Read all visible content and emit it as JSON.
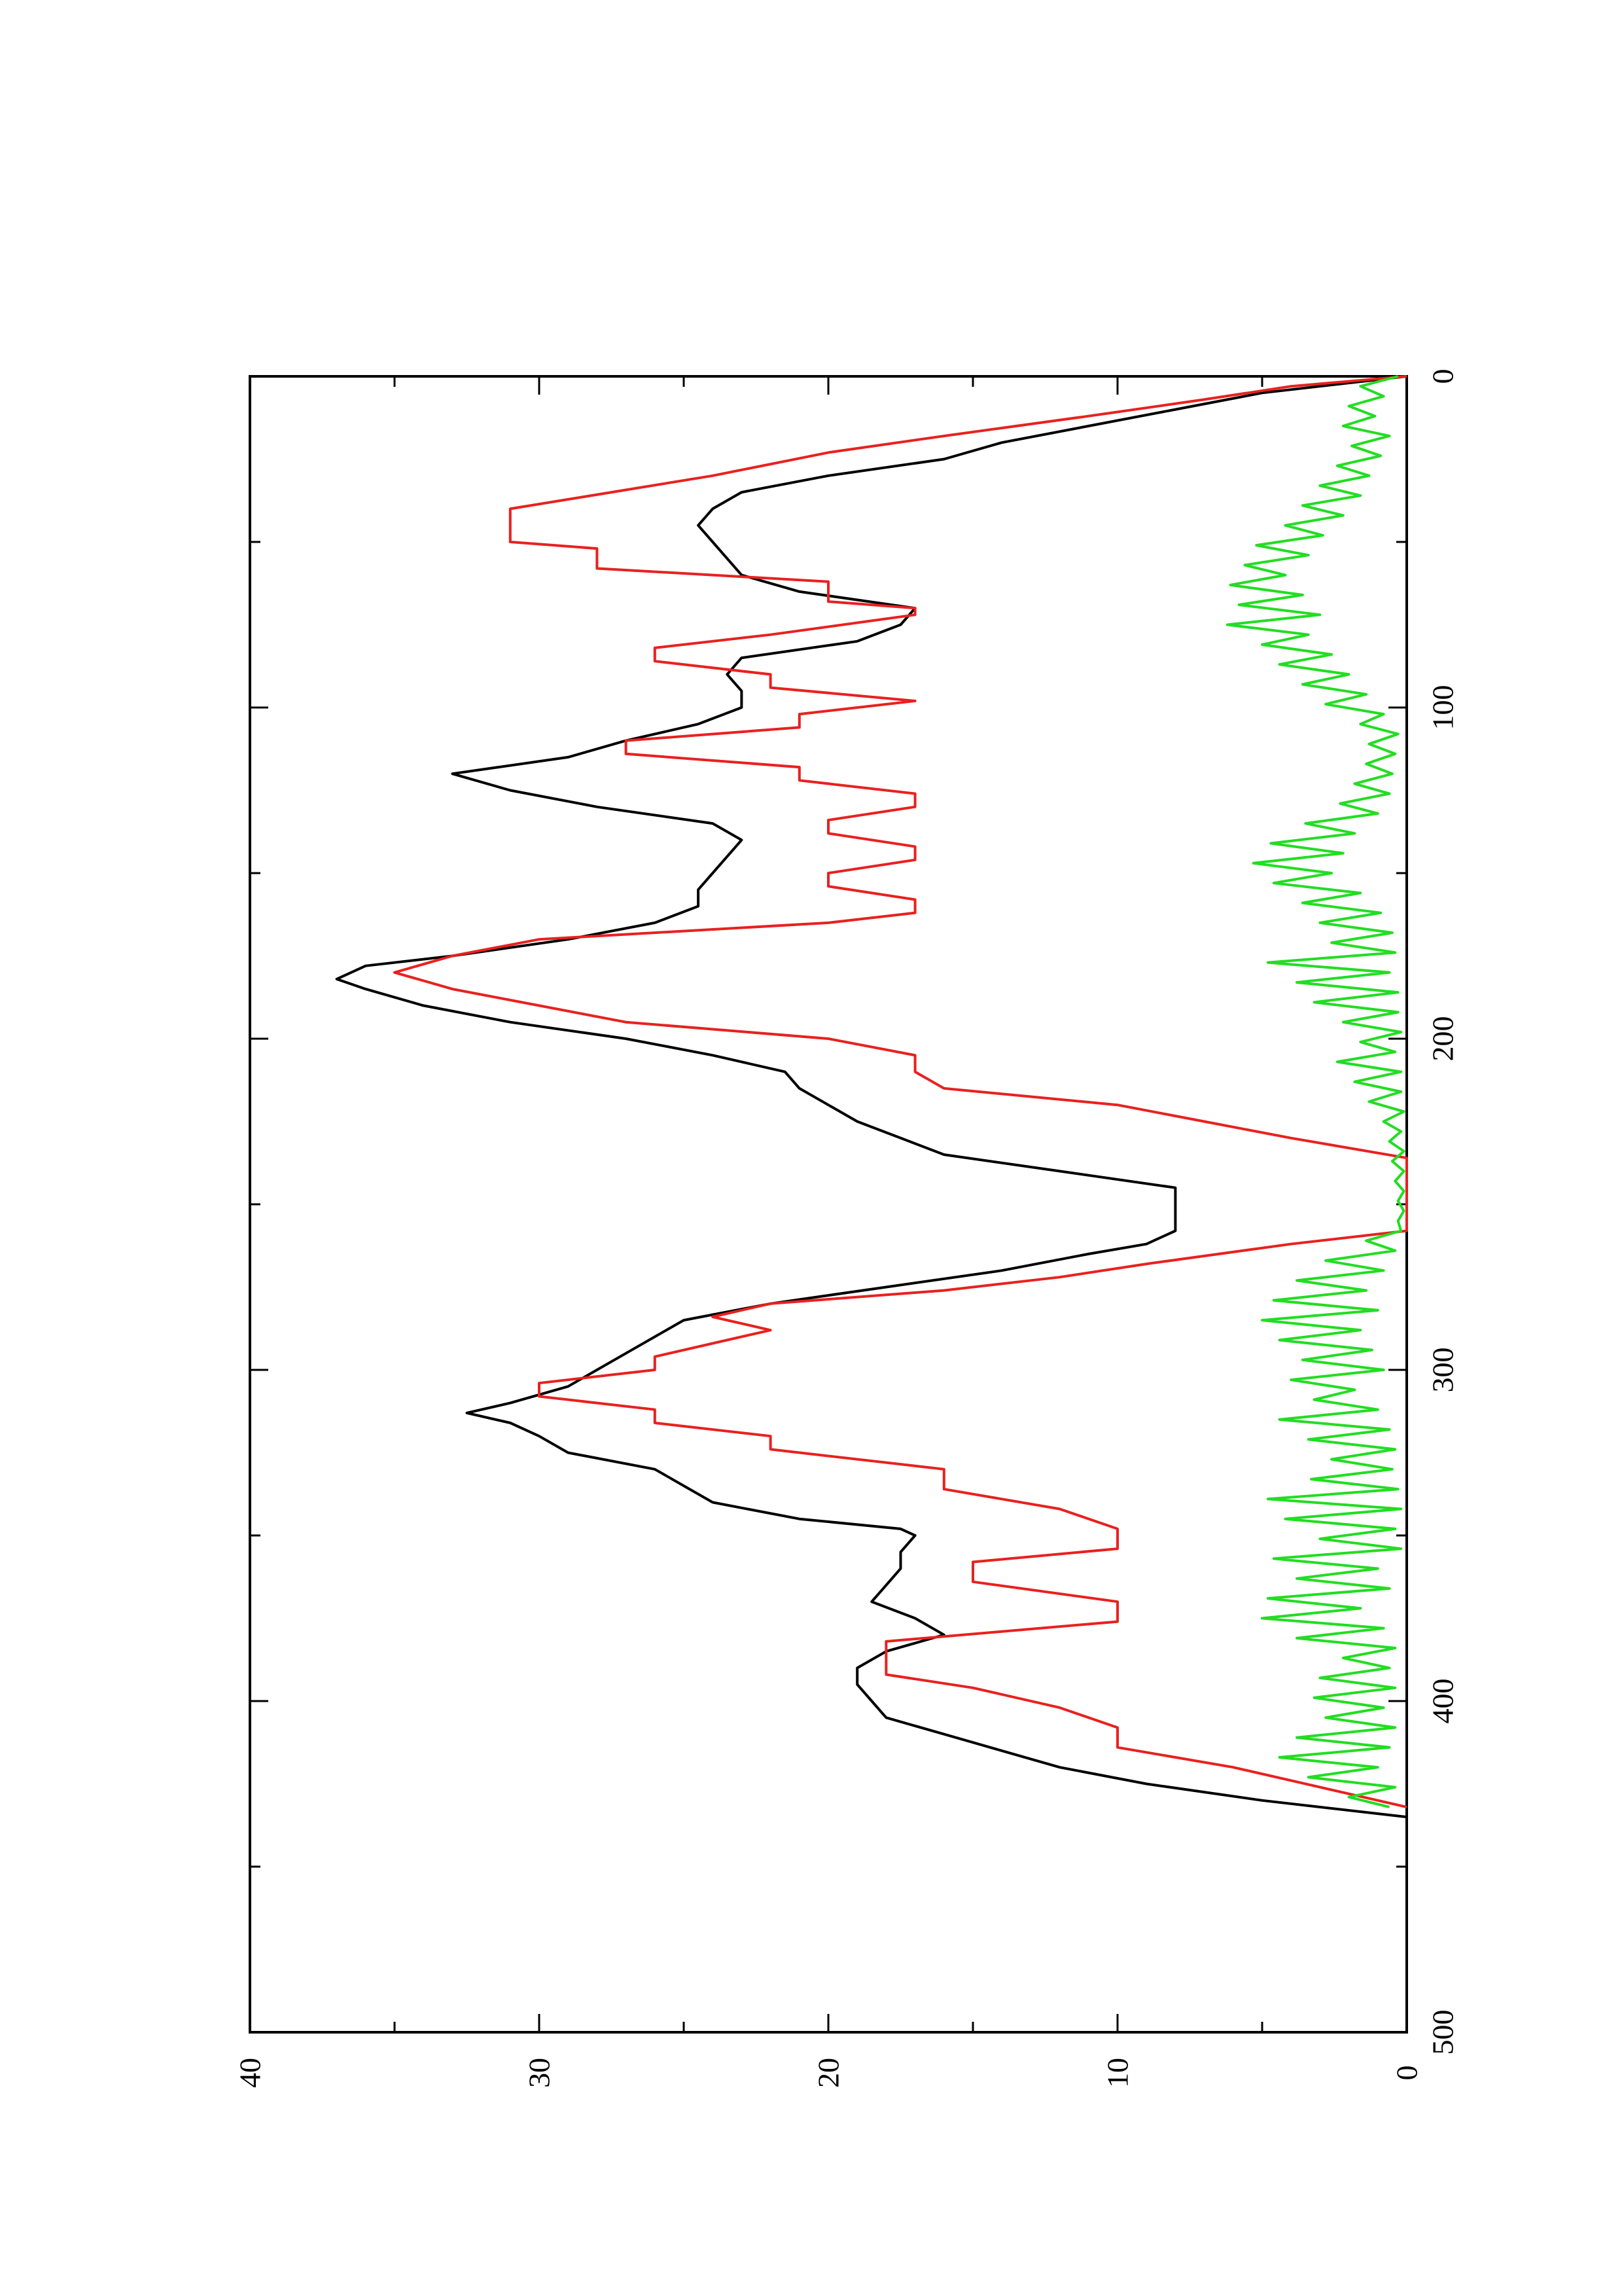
{
  "chart_data": {
    "type": "line",
    "title": "",
    "xlabel": "",
    "ylabel": "",
    "orientation": "rotated-90-ccw",
    "xlim": [
      0,
      500
    ],
    "ylim": [
      0,
      40
    ],
    "x_ticks": [
      "0",
      "100",
      "200",
      "300",
      "400",
      "500"
    ],
    "x_minor_ticks": [
      50,
      150,
      250,
      350,
      450
    ],
    "y_ticks": [
      "0",
      "10",
      "20",
      "30",
      "40"
    ],
    "y_minor_ticks": [
      5,
      15,
      25,
      35
    ],
    "grid": false,
    "legend": "none",
    "series": [
      {
        "color": "#000000",
        "x": [
          0,
          5,
          10,
          15,
          20,
          25,
          30,
          35,
          40,
          45,
          50,
          55,
          60,
          65,
          70,
          75,
          80,
          85,
          90,
          95,
          100,
          105,
          110,
          115,
          120,
          125,
          130,
          135,
          140,
          145,
          150,
          155,
          160,
          165,
          170,
          175,
          178,
          182,
          185,
          190,
          195,
          200,
          205,
          210,
          215,
          220,
          225,
          230,
          235,
          240,
          245,
          250,
          255,
          258,
          262,
          265,
          270,
          275,
          280,
          285,
          290,
          295,
          300,
          305,
          310,
          313,
          316,
          320,
          325,
          330,
          335,
          340,
          345,
          348,
          350,
          355,
          360,
          365,
          370,
          375,
          380,
          385,
          390,
          395,
          400,
          405,
          410,
          415,
          420,
          425,
          430,
          435
        ],
        "y": [
          0,
          5,
          8,
          11,
          14,
          16,
          20,
          23,
          24,
          24.5,
          24,
          23.5,
          23,
          21,
          17,
          17.5,
          19,
          23,
          23.5,
          23,
          23,
          24.5,
          27,
          29,
          33,
          31,
          28,
          24,
          23,
          23.5,
          24,
          24.5,
          24.5,
          26,
          29,
          33,
          36,
          37,
          36,
          34,
          31,
          27,
          24,
          21.5,
          21,
          20,
          19,
          17.5,
          16,
          12,
          8,
          8,
          8,
          8,
          9,
          11,
          14,
          18,
          22,
          25,
          26,
          27,
          28,
          29,
          31,
          32.5,
          31,
          30,
          29,
          26,
          25,
          24,
          21,
          17.5,
          17,
          17.5,
          17.5,
          18,
          18.5,
          17,
          16,
          18,
          19,
          19,
          18.5,
          18,
          16,
          14,
          12,
          9,
          5,
          0
        ]
      },
      {
        "color": "#e8211f",
        "x": [
          0,
          3,
          7,
          12,
          18,
          23,
          30,
          40,
          50,
          52,
          58,
          62,
          68,
          70,
          72,
          78,
          82,
          86,
          90,
          94,
          98,
          102,
          106,
          110,
          114,
          118,
          122,
          126,
          130,
          134,
          138,
          142,
          146,
          150,
          154,
          158,
          162,
          165,
          170,
          175,
          180,
          185,
          190,
          195,
          200,
          205,
          210,
          215,
          220,
          225,
          230,
          236,
          240,
          248,
          252,
          258,
          262,
          268,
          272,
          276,
          280,
          284,
          288,
          292,
          296,
          300,
          304,
          308,
          312,
          316,
          320,
          324,
          330,
          336,
          342,
          348,
          354,
          358,
          364,
          370,
          376,
          382,
          388,
          392,
          396,
          402,
          408,
          414,
          420,
          426,
          432
        ],
        "y": [
          0,
          4,
          7,
          11,
          16,
          20,
          24,
          31,
          31,
          28,
          28,
          20,
          20,
          17,
          17,
          22,
          26,
          26,
          22,
          22,
          17,
          21,
          21,
          27,
          27,
          21,
          21,
          17,
          17,
          20,
          20,
          17,
          17,
          20,
          20,
          17,
          17,
          20,
          30,
          33,
          35,
          33,
          30,
          27,
          20,
          17,
          17,
          16,
          10,
          7,
          4,
          0,
          0,
          0,
          0,
          0,
          4,
          9,
          12,
          16,
          22,
          24,
          22,
          24,
          26,
          26,
          30,
          30,
          26,
          26,
          22,
          22,
          16,
          16,
          12,
          10,
          10,
          15,
          15,
          10,
          10,
          18,
          18,
          18,
          15,
          12,
          10,
          10,
          6,
          3,
          0
        ]
      },
      {
        "color": "#22dd22",
        "x": [
          0,
          3,
          6,
          9,
          12,
          15,
          18,
          21,
          24,
          27,
          30,
          33,
          36,
          39,
          42,
          45,
          48,
          51,
          54,
          57,
          60,
          63,
          66,
          69,
          72,
          75,
          78,
          81,
          84,
          87,
          90,
          93,
          96,
          99,
          102,
          105,
          108,
          111,
          114,
          117,
          120,
          123,
          126,
          129,
          132,
          135,
          138,
          141,
          144,
          147,
          150,
          153,
          156,
          159,
          162,
          165,
          168,
          171,
          174,
          177,
          180,
          183,
          186,
          189,
          192,
          195,
          198,
          201,
          204,
          207,
          210,
          213,
          216,
          219,
          222,
          225,
          228,
          231,
          234,
          237,
          240,
          243,
          246,
          249,
          252,
          255,
          258,
          261,
          264,
          267,
          270,
          273,
          276,
          279,
          282,
          285,
          288,
          291,
          294,
          297,
          300,
          303,
          306,
          309,
          312,
          315,
          318,
          321,
          324,
          327,
          330,
          333,
          336,
          339,
          342,
          345,
          348,
          351,
          354,
          357,
          360,
          363,
          366,
          369,
          372,
          375,
          378,
          381,
          384,
          387,
          390,
          393,
          396,
          399,
          402,
          405,
          408,
          411,
          414,
          417,
          420,
          423,
          426,
          429,
          432
        ],
        "y": [
          0.3,
          1.6,
          0.8,
          2.0,
          1.1,
          2.2,
          0.6,
          1.9,
          0.9,
          2.4,
          1.3,
          3.0,
          1.6,
          3.6,
          2.2,
          4.2,
          2.9,
          5.2,
          3.4,
          5.6,
          4.2,
          6.1,
          3.6,
          5.8,
          3.0,
          6.2,
          3.4,
          5.0,
          2.6,
          4.4,
          2.0,
          3.6,
          1.4,
          2.8,
          0.8,
          1.6,
          0.3,
          1.3,
          0.4,
          1.4,
          0.5,
          1.8,
          0.6,
          2.3,
          1.0,
          3.5,
          1.8,
          4.7,
          2.2,
          5.3,
          2.6,
          4.6,
          1.6,
          3.6,
          0.9,
          3.0,
          0.5,
          2.6,
          0.4,
          4.8,
          0.6,
          3.8,
          0.3,
          3.2,
          0.3,
          2.2,
          0.2,
          1.6,
          0.4,
          2.4,
          0.2,
          1.8,
          0.2,
          1.3,
          0.1,
          0.8,
          0.2,
          0.6,
          0.1,
          0.5,
          0.1,
          0.4,
          0.1,
          0.3,
          0.1,
          0.3,
          0.2,
          1.4,
          0.4,
          2.8,
          0.8,
          3.8,
          1.4,
          4.6,
          1.0,
          5.0,
          1.6,
          4.4,
          1.2,
          3.6,
          0.8,
          4.0,
          1.8,
          3.2,
          1.0,
          4.4,
          0.6,
          3.4,
          0.4,
          2.6,
          0.5,
          3.3,
          0.3,
          4.8,
          0.2,
          4.2,
          0.4,
          3.0,
          0.2,
          4.6,
          1.0,
          3.8,
          0.6,
          4.8,
          1.6,
          5.0,
          0.8,
          3.8,
          0.4,
          2.2,
          0.6,
          3.0,
          0.4,
          3.2,
          0.8,
          2.8,
          0.4,
          3.8,
          0.6,
          4.4,
          1.0,
          3.4,
          0.4,
          2.0,
          0.6
        ]
      }
    ]
  }
}
